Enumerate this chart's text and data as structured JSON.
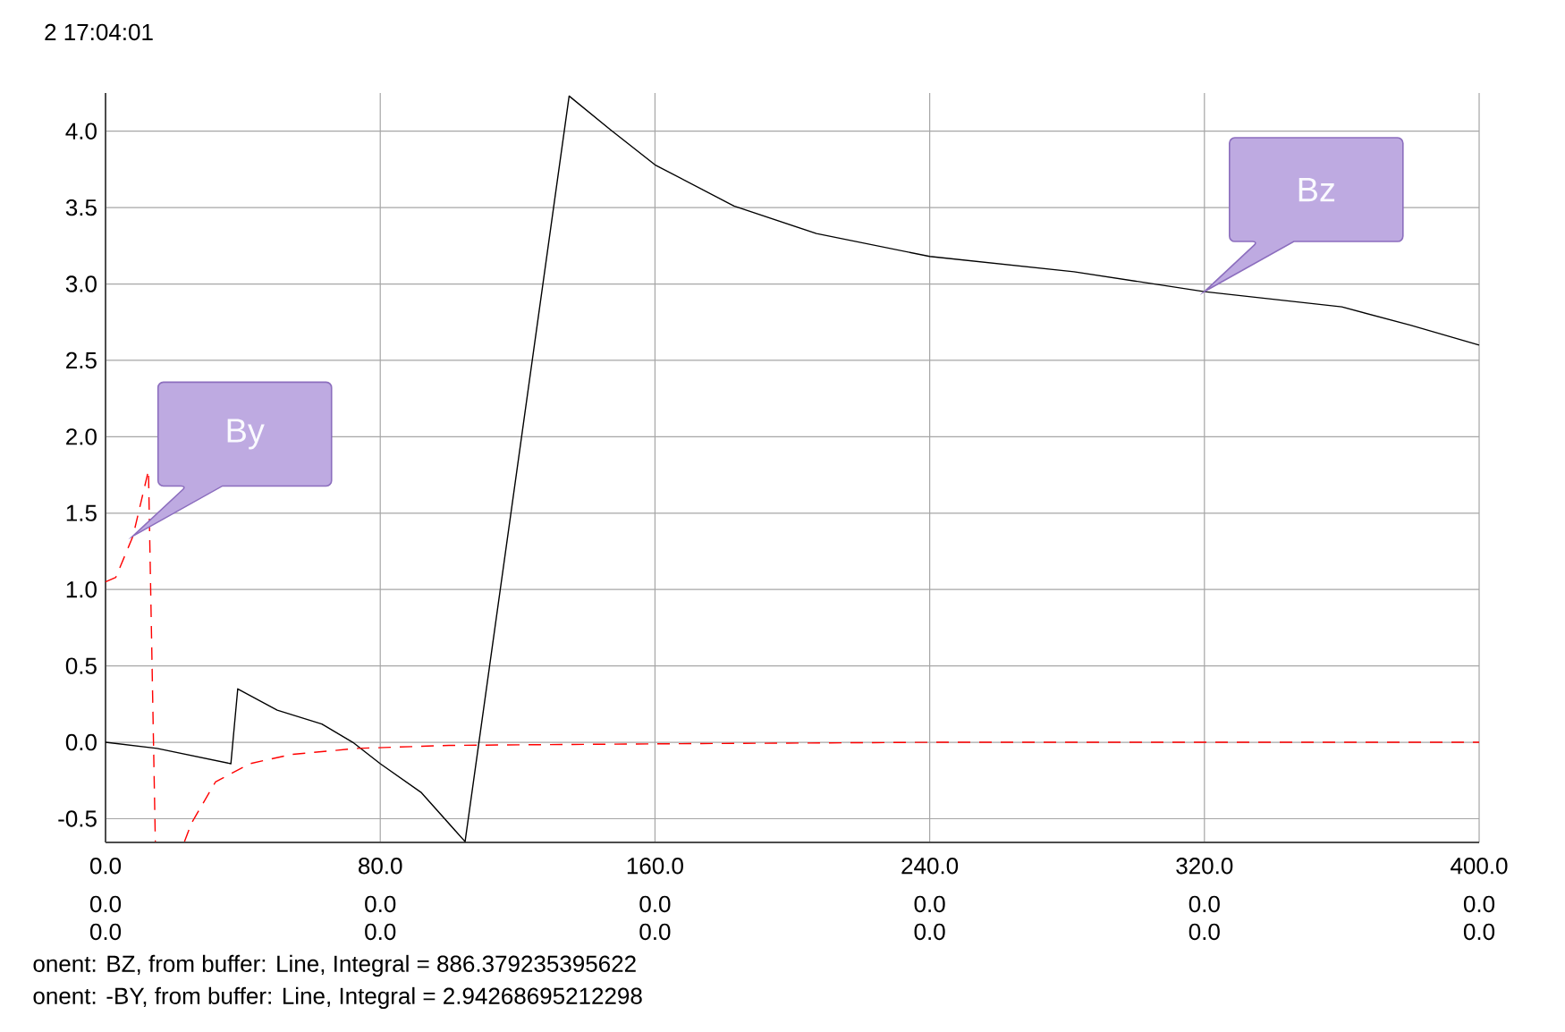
{
  "chart_data": {
    "type": "line",
    "title": "2 17:04:01",
    "series": [
      {
        "name": "Bz",
        "color": "#000000",
        "line_style": "solid",
        "x": [
          0,
          15,
          36.5,
          38.5,
          50,
          63,
          72,
          80,
          92,
          104.7,
          135,
          147,
          160,
          183,
          207,
          240,
          282,
          320,
          360,
          380,
          400
        ],
        "values": [
          0,
          -0.04,
          -0.14,
          0.35,
          0.21,
          0.12,
          0.0,
          -0.14,
          -0.33,
          -0.65,
          4.23,
          4.01,
          3.78,
          3.51,
          3.33,
          3.18,
          3.08,
          2.95,
          2.85,
          2.73,
          2.6
        ]
      },
      {
        "name": "By",
        "color": "#ff0000",
        "line_style": "dashed",
        "x": [
          0,
          3,
          8,
          12.5,
          14.5,
          19,
          23,
          25,
          32,
          42,
          54,
          73,
          100,
          160,
          240,
          320,
          400
        ],
        "values": [
          1.05,
          1.08,
          1.35,
          1.78,
          -0.65,
          null,
          -0.65,
          -0.53,
          -0.26,
          -0.14,
          -0.08,
          -0.04,
          -0.02,
          -0.01,
          0,
          0,
          0
        ]
      }
    ],
    "xlim": [
      0,
      400
    ],
    "ylim": [
      -0.655,
      4.25
    ],
    "xticks": [
      {
        "value": 0,
        "label": "0.0"
      },
      {
        "value": 80,
        "label": "80.0"
      },
      {
        "value": 160,
        "label": "160.0"
      },
      {
        "value": 240,
        "label": "240.0"
      },
      {
        "value": 320,
        "label": "320.0"
      },
      {
        "value": 400,
        "label": "400.0"
      }
    ],
    "yticks": [
      {
        "value": -0.5,
        "label": "-0.5"
      },
      {
        "value": 0,
        "label": "0.0"
      },
      {
        "value": 0.5,
        "label": "0.5"
      },
      {
        "value": 1,
        "label": "1.0"
      },
      {
        "value": 1.5,
        "label": "1.5"
      },
      {
        "value": 2,
        "label": "2.0"
      },
      {
        "value": 2.5,
        "label": "2.5"
      },
      {
        "value": 3,
        "label": "3.0"
      },
      {
        "value": 3.5,
        "label": "3.5"
      },
      {
        "value": 4,
        "label": "4.0"
      }
    ],
    "grid": true,
    "marker": "none",
    "annotations": [
      "0.0",
      "0.0",
      "0.0",
      "0.0",
      "0.0",
      "0.0",
      "0.0",
      "0.0",
      "0.0",
      "0.0",
      "0.0",
      "0.0",
      "onent: BZ, from buffer: Line, Integral = 886.379235395622",
      "onent: -BY, from buffer: Line, Integral = 2.94268695212298"
    ]
  }
}
